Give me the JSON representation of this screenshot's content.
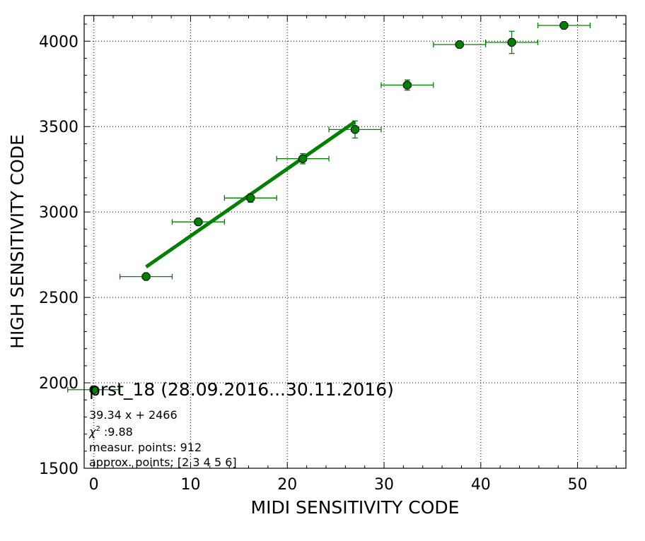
{
  "chart_data": {
    "type": "scatter",
    "xlabel": "MIDI SENSITIVITY CODE",
    "ylabel": "HIGH SENSITIVITY CODE",
    "xlim": [
      -1,
      55
    ],
    "ylim": [
      1500,
      4150
    ],
    "x_ticks": [
      0,
      10,
      20,
      30,
      40,
      50
    ],
    "y_ticks": [
      1500,
      2000,
      2500,
      3000,
      3500,
      4000
    ],
    "grid": true,
    "legend_placement": "bottom-left",
    "colors": {
      "series": "#008000",
      "marker_edge": "#000000",
      "line": "#008000"
    },
    "series": [
      {
        "name": "prst_18 (28.09.2016...30.11.2016)",
        "points": [
          {
            "x": 0.0,
            "y": 1960,
            "xerr": 2.7,
            "yerr": 0
          },
          {
            "x": 5.4,
            "y": 2622,
            "xerr": 2.7,
            "yerr": 15
          },
          {
            "x": 10.8,
            "y": 2942,
            "xerr": 2.7,
            "yerr": 10
          },
          {
            "x": 16.2,
            "y": 3082,
            "xerr": 2.7,
            "yerr": 25
          },
          {
            "x": 21.6,
            "y": 3312,
            "xerr": 2.7,
            "yerr": 30
          },
          {
            "x": 27.0,
            "y": 3483,
            "xerr": 2.7,
            "yerr": 50
          },
          {
            "x": 32.4,
            "y": 3743,
            "xerr": 2.7,
            "yerr": 30
          },
          {
            "x": 37.8,
            "y": 3980,
            "xerr": 2.7,
            "yerr": 15
          },
          {
            "x": 43.2,
            "y": 3993,
            "xerr": 2.7,
            "yerr": 65
          },
          {
            "x": 48.6,
            "y": 4092,
            "xerr": 2.7,
            "yerr": 10
          }
        ]
      }
    ],
    "fit_line": {
      "slope": 39.34,
      "intercept": 2466,
      "x_range": [
        5.4,
        27.0
      ]
    },
    "legend": {
      "title": "prst_18 (28.09.2016...30.11.2016)",
      "lines": [
        "39.34 x + 2466",
        "measur. points: 912",
        "approx. points: [2 3 4 5 6]"
      ],
      "chi2_symbol": "χ",
      "chi2_power": "2",
      "chi2_value": ":9.88"
    }
  }
}
